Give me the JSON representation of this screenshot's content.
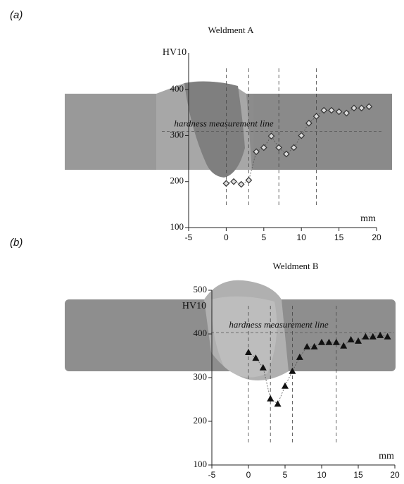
{
  "chart_data": [
    {
      "type": "scatter",
      "panel_label": "(a)",
      "title": "Weldment A",
      "y_label": "HV10",
      "x_label": "mm",
      "annotation": "hardness measurement line",
      "hardness_line": 309,
      "vlines": [
        0,
        3,
        7,
        12
      ],
      "marker": "diamond",
      "x": [
        0,
        1,
        2,
        3,
        4,
        5,
        6,
        7,
        8,
        9,
        10,
        11,
        12,
        13,
        14,
        15,
        16,
        17,
        18,
        19
      ],
      "series": [
        {
          "color": "#333333",
          "values": [
            196,
            200,
            194,
            203,
            265,
            274,
            299,
            274,
            260,
            274,
            300,
            327,
            342,
            355,
            355,
            352,
            349,
            360,
            360,
            363
          ]
        }
      ],
      "xlim": [
        -5,
        20
      ],
      "xticks": [
        -5,
        0,
        5,
        10,
        15,
        20
      ],
      "ylim": [
        100,
        480
      ],
      "yticks": [
        100,
        200,
        300,
        400
      ]
    },
    {
      "type": "scatter",
      "panel_label": "(b)",
      "title": "Weldment B",
      "y_label": "HV10",
      "x_label": "mm",
      "annotation": "hardness measurement line",
      "hardness_line": 403,
      "vlines": [
        0,
        3,
        6,
        12
      ],
      "marker": "triangle",
      "x": [
        0,
        1,
        2,
        3,
        4,
        5,
        6,
        7,
        8,
        9,
        10,
        11,
        12,
        13,
        14,
        15,
        16,
        17,
        18,
        19
      ],
      "series": [
        {
          "color": "#111111",
          "values": [
            358,
            345,
            323,
            252,
            240,
            281,
            315,
            347,
            371,
            371,
            381,
            381,
            381,
            373,
            387,
            384,
            394,
            394,
            397,
            394
          ]
        }
      ],
      "xlim": [
        -5,
        20
      ],
      "xticks": [
        -5,
        0,
        5,
        10,
        15,
        20
      ],
      "ylim": [
        100,
        500
      ],
      "yticks": [
        100,
        200,
        300,
        400,
        500
      ]
    }
  ]
}
